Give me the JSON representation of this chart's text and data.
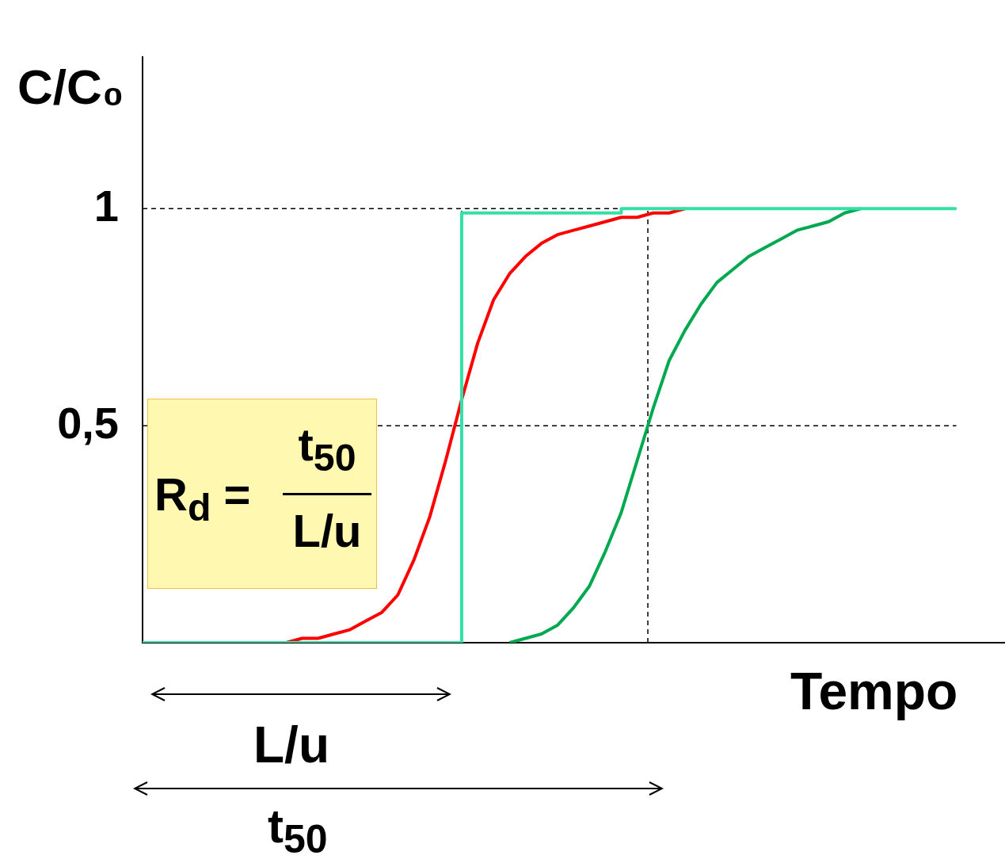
{
  "chart_data": {
    "type": "line",
    "ylabel": "C/C₀",
    "xlabel": "Tempo",
    "categories": [
      null,
      null,
      null,
      null,
      null,
      null,
      null,
      null,
      null,
      null,
      null,
      null,
      null,
      null,
      null,
      null,
      null,
      null,
      null,
      null,
      null,
      null,
      null,
      null,
      null,
      null,
      null,
      null,
      null,
      null,
      null,
      null,
      null,
      null,
      null,
      null,
      null,
      null,
      null,
      null,
      null,
      null,
      null,
      null,
      null,
      null,
      null,
      null,
      null,
      null,
      null,
      null,
      null,
      null,
      null
    ],
    "ylim": [
      0,
      1.35
    ],
    "yticks": [
      {
        "value": 0.5,
        "label": "0,5"
      },
      {
        "value": 1,
        "label": "1"
      }
    ],
    "grid": false,
    "legend": false,
    "marker": "none",
    "series": [
      {
        "color": "#ff0000",
        "values": [
          null,
          null,
          null,
          null,
          null,
          null,
          null,
          null,
          null,
          0,
          0.01,
          0.01,
          0.02,
          0.03,
          0.05,
          0.07,
          0.11,
          0.19,
          0.29,
          0.42,
          0.56,
          0.69,
          0.79,
          0.85,
          0.89,
          0.92,
          0.94,
          0.95,
          0.96,
          0.97,
          0.98,
          0.98,
          0.99,
          0.99,
          1,
          null,
          null,
          null,
          null,
          null,
          null,
          null,
          null,
          null,
          null,
          null,
          null,
          null,
          null,
          null,
          null,
          null,
          null,
          null,
          null
        ]
      },
      {
        "color": "#00a850",
        "values": [
          null,
          null,
          null,
          null,
          null,
          null,
          null,
          null,
          null,
          null,
          null,
          null,
          null,
          null,
          null,
          null,
          null,
          null,
          null,
          null,
          null,
          null,
          null,
          0,
          0.01,
          0.02,
          0.04,
          0.08,
          0.13,
          0.21,
          0.3,
          0.42,
          0.54,
          0.65,
          0.72,
          0.78,
          0.83,
          0.86,
          0.89,
          0.91,
          0.93,
          0.95,
          0.96,
          0.97,
          0.99,
          1,
          null,
          null,
          null,
          null,
          null,
          null,
          null,
          null,
          null
        ]
      },
      {
        "type": "step",
        "color": "#33e0a8",
        "values": [
          0,
          0,
          0,
          0,
          0,
          0,
          0,
          0,
          0,
          0,
          0,
          0,
          0,
          0,
          0,
          0,
          0,
          0,
          0,
          0,
          0.99,
          0.99,
          0.99,
          0.99,
          0.99,
          0.99,
          0.99,
          0.99,
          0.99,
          0.99,
          1,
          1,
          1,
          1,
          1,
          1,
          1,
          1,
          1,
          1,
          1,
          1,
          1,
          1,
          1,
          1,
          1,
          1,
          1,
          1,
          1,
          1,
          null,
          null,
          null
        ]
      }
    ],
    "ref_lines": [
      {
        "axis": "y",
        "value": 1,
        "line_style": "dashed",
        "color": "#000000"
      },
      {
        "axis": "y",
        "value": 0.5,
        "line_style": "dashed",
        "color": "#000000"
      }
    ],
    "annotations": [
      "R$_{d}$ =",
      "t$_{50}$",
      "L/u",
      "L/u",
      "t$_{50}$"
    ]
  }
}
